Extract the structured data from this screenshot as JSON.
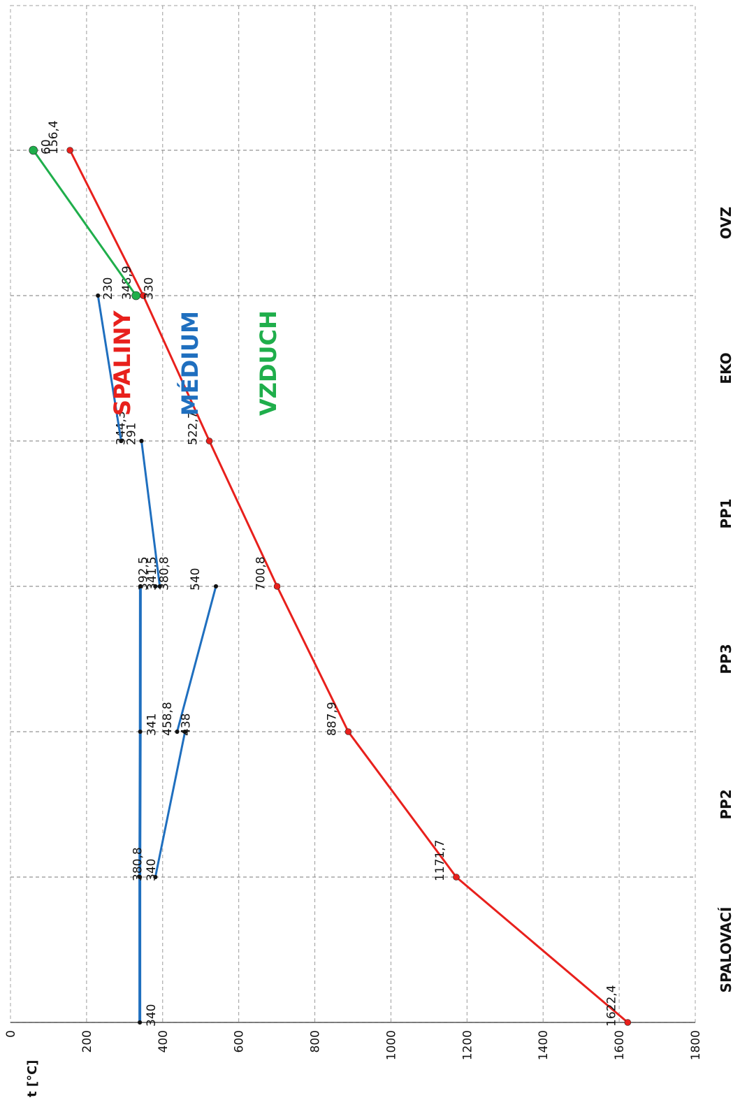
{
  "chart_data": {
    "type": "line",
    "ylabel": "t [°C]",
    "ylim": [
      0,
      1800
    ],
    "y_ticks": [
      "0",
      "200",
      "400",
      "600",
      "800",
      "1000",
      "1200",
      "1400",
      "1600",
      "1800"
    ],
    "grid": true,
    "categories": [
      "SPALOVACÍ",
      "PP2",
      "PP3",
      "PP1",
      "EKO",
      "OVZ"
    ],
    "series": [
      {
        "name": "SPALINY",
        "color": "#e8201c",
        "points": [
          {
            "x": 0,
            "y": 1622.4,
            "label": "1622,4"
          },
          {
            "x": 1,
            "y": 1171.7,
            "label": "1171,7"
          },
          {
            "x": 2,
            "y": 887.9,
            "label": "887,9"
          },
          {
            "x": 3,
            "y": 700.8,
            "label": "700,8"
          },
          {
            "x": 4,
            "y": 522.7,
            "label": "522,7"
          },
          {
            "x": 5,
            "y": 348.9,
            "label": "348,9"
          },
          {
            "x": 6,
            "y": 156.4,
            "label": "156,4"
          }
        ]
      },
      {
        "name": "MÉDIUM",
        "color": "#1f6fbf",
        "segments": [
          [
            {
              "x": 0,
              "y": 340,
              "label": "340"
            },
            {
              "x": 1,
              "y": 340,
              "label": "340"
            },
            {
              "x": 2,
              "y": 341,
              "label": "341"
            },
            {
              "x": 3,
              "y": 341.5,
              "label": "341,5"
            }
          ],
          [
            {
              "x": 1,
              "y": 380.8,
              "label": "380,8"
            },
            {
              "x": 2,
              "y": 458.8,
              "label": "458,8"
            }
          ],
          [
            {
              "x": 2,
              "y": 438,
              "label": "438"
            },
            {
              "x": 3,
              "y": 540,
              "label": "540"
            }
          ],
          [
            {
              "x": 3,
              "y": 380.8,
              "label": "380,8"
            },
            {
              "x": 3,
              "y": 392.5,
              "label": "392,5"
            },
            {
              "x": 4,
              "y": 344.3,
              "label": "344,3"
            }
          ],
          [
            {
              "x": 4,
              "y": 291,
              "label": "291"
            },
            {
              "x": 5,
              "y": 230,
              "label": "230"
            }
          ]
        ]
      },
      {
        "name": "VZDUCH",
        "color": "#1fae4b",
        "points": [
          {
            "x": 5,
            "y": 330,
            "label": "330"
          },
          {
            "x": 6,
            "y": 60,
            "label": "60"
          }
        ]
      }
    ]
  }
}
